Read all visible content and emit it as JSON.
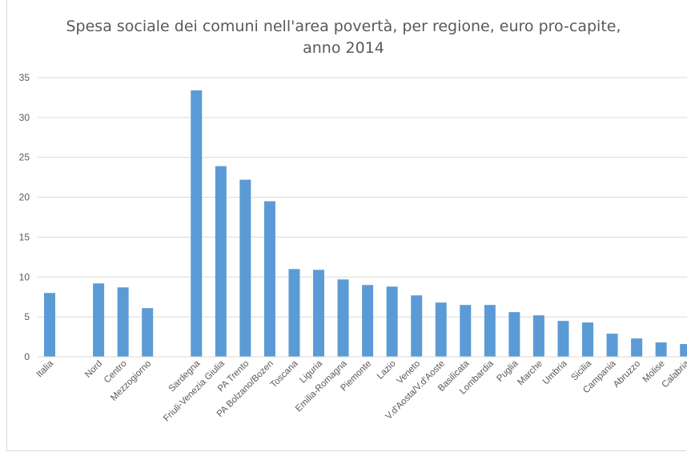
{
  "chart_data": {
    "type": "bar",
    "title": "Spesa sociale dei comuni nell'area povertà, per regione, euro pro-capite, anno 2014",
    "title_lines": [
      "Spesa sociale dei comuni nell'area povertà, per regione, euro pro-capite,",
      "anno 2014"
    ],
    "xlabel": "",
    "ylabel": "",
    "ylim": [
      0,
      35
    ],
    "yticks": [
      0,
      5,
      10,
      15,
      20,
      25,
      30,
      35
    ],
    "grid": true,
    "bar_color": "#5b9bd5",
    "categories": [
      "Italia",
      "",
      "Nord",
      "Centro",
      "Mezzogiorno",
      "",
      "Sardegna",
      "Friuli-Venezia Giulia",
      "PA Trento",
      "PA Bolzano/Bozen",
      "Toscana",
      "Liguria",
      "Emilia-Romagna",
      "Piemonte",
      "Lazio",
      "Veneto",
      "V.d'Aosta/V.d'Aoste",
      "Basilicata",
      "Lombardia",
      "Puglia",
      "Marche",
      "Umbria",
      "Sicilia",
      "Campania",
      "Abruzzo",
      "Molise",
      "Calabria"
    ],
    "values": [
      8.0,
      null,
      9.2,
      8.7,
      6.1,
      null,
      33.4,
      23.9,
      22.2,
      19.5,
      11.0,
      10.9,
      9.7,
      9.0,
      8.8,
      7.7,
      6.8,
      6.5,
      6.5,
      5.6,
      5.2,
      4.5,
      4.3,
      2.9,
      2.3,
      1.8,
      1.6
    ]
  }
}
